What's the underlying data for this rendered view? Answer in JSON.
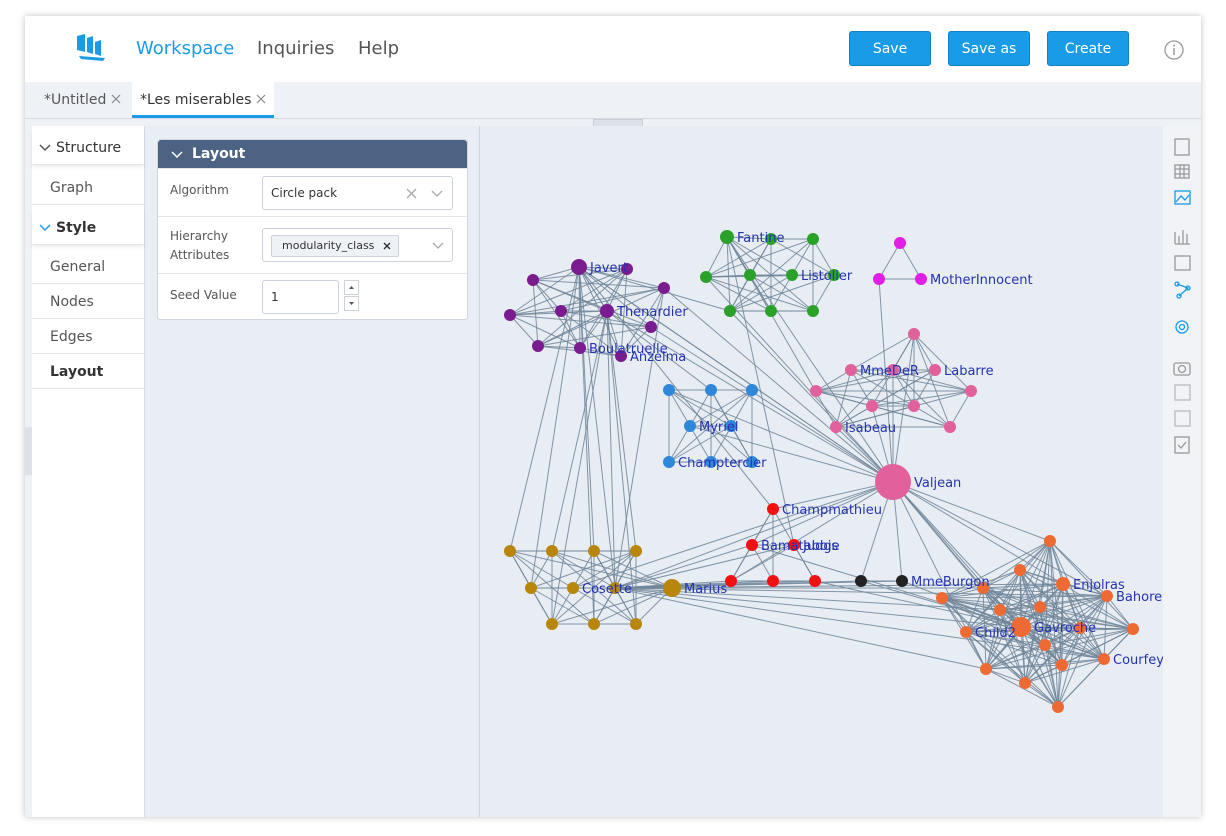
{
  "header": {
    "nav": [
      "Workspace",
      "Inquiries",
      "Help"
    ],
    "buttons": [
      "Save",
      "Save as",
      "Create"
    ]
  },
  "tabs": [
    "*Untitled",
    "*Les miserables"
  ],
  "sidebar": [
    "Structure",
    "Graph",
    "Style",
    "General",
    "Nodes",
    "Edges",
    "Layout"
  ],
  "layout_panel": {
    "title": "Layout",
    "fields": [
      {
        "label": "Algorithm",
        "value": "Circle pack"
      },
      {
        "label": "Hierarchy Attributes",
        "value": "modularity_class"
      },
      {
        "label": "Seed Value",
        "value": "1"
      }
    ]
  },
  "graph": {
    "node_labels": [
      "Javert",
      "Thenardier",
      "Boulatruelle",
      "Anzelma",
      "Fantine",
      "Listolier",
      "MotherInnocent",
      "MmeDeR",
      "Labarre",
      "Isabeau",
      "Myriel",
      "Champtercier",
      "Valjean",
      "Champmathieu",
      "Bamatabois",
      "Judge",
      "MmeBurgon",
      "Cosette",
      "Marius",
      "Enjolras",
      "Bahorel",
      "Child2",
      "Gavroche",
      "Courfey"
    ]
  }
}
